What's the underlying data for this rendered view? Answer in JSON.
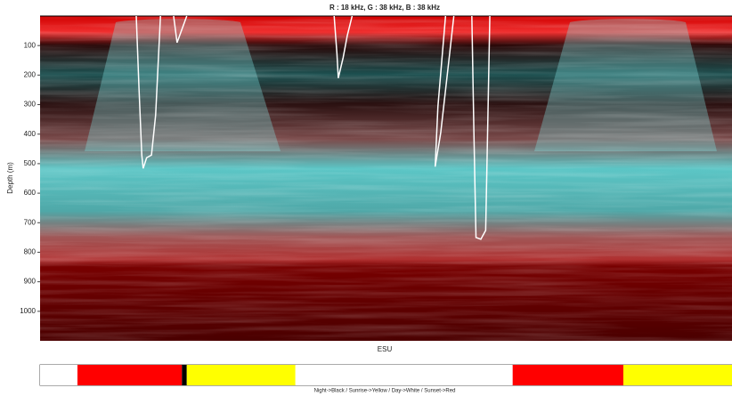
{
  "chart_data": {
    "type": "echogram",
    "title": "R : 18 kHz, G : 38 kHz, B : 38 kHz",
    "ylabel": "Depth (m)",
    "xlabel": "ESU",
    "ylim": [
      0,
      1100
    ],
    "y_inverted": true,
    "yticks": [
      100,
      200,
      300,
      400,
      500,
      600,
      700,
      800,
      900,
      1000
    ],
    "xlim": [
      0,
      1000
    ],
    "series": [
      {
        "color": "#ffffff",
        "x": [
          139,
          143,
          147,
          149,
          154,
          161,
          167,
          174
        ],
        "values": [
          0,
          246,
          471,
          516,
          480,
          471,
          336,
          0
        ]
      },
      {
        "color": "#ffffff",
        "x": [
          193,
          198,
          212
        ],
        "values": [
          0,
          90,
          0
        ]
      },
      {
        "color": "#ffffff",
        "x": [
          425,
          429,
          431,
          438,
          444,
          451
        ],
        "values": [
          0,
          126,
          210,
          141,
          66,
          0
        ]
      },
      {
        "color": "#ffffff",
        "x": [
          586,
          575,
          571,
          579,
          592,
          598
        ],
        "values": [
          0,
          306,
          510,
          396,
          126,
          0
        ]
      },
      {
        "color": "#ffffff",
        "x": [
          624,
          627,
          630,
          637,
          644,
          648,
          650
        ],
        "values": [
          0,
          396,
          750,
          756,
          726,
          246,
          0
        ]
      }
    ],
    "periods": [
      {
        "color": "#ffffff",
        "start": 0,
        "end": 54
      },
      {
        "color": "#ff0000",
        "start": 54,
        "end": 205
      },
      {
        "color": "#000000",
        "start": 205,
        "end": 212
      },
      {
        "color": "#ffff00",
        "start": 212,
        "end": 369
      },
      {
        "color": "#ffffff",
        "start": 369,
        "end": 683
      },
      {
        "color": "#ff0000",
        "start": 683,
        "end": 843
      },
      {
        "color": "#ffff00",
        "start": 843,
        "end": 1000
      }
    ],
    "period_caption": "Night->Black / Sunrise->Yellow / Day->White / Sunset->Red"
  }
}
